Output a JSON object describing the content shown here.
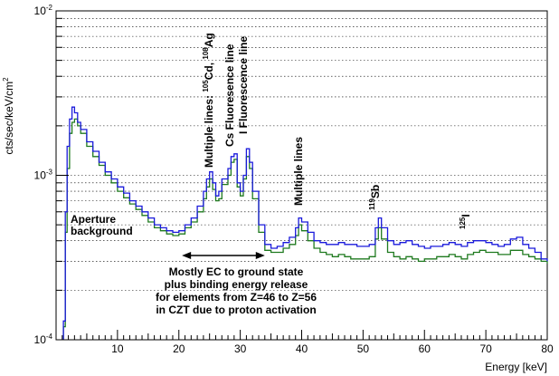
{
  "chart_data": {
    "type": "line",
    "xlabel": "Energy [keV]",
    "ylabel_main": "cts/sec/keV/cm",
    "ylabel_sup": "2",
    "xlim": [
      0,
      80
    ],
    "ylim": [
      0.0001,
      0.01
    ],
    "yscale": "log",
    "xticks": [
      "10",
      "20",
      "30",
      "40",
      "50",
      "60",
      "70",
      "80"
    ],
    "yticks": [
      {
        "base": "10",
        "exp": "-4",
        "value": 0.0001
      },
      {
        "base": "10",
        "exp": "-3",
        "value": 0.001
      },
      {
        "base": "10",
        "exp": "-2",
        "value": 0.01
      }
    ],
    "grid": "horizontal-dotted",
    "colors": {
      "series_blue": "#1a1adb",
      "series_green": "#1f7a1f"
    },
    "series": [
      {
        "color": "#1a1adb",
        "x": [
          1.2,
          1.5,
          1.8,
          2.2,
          2.6,
          3.0,
          3.5,
          4.0,
          5.0,
          6.0,
          7.0,
          8.0,
          9.0,
          10.0,
          11.0,
          12.0,
          13.0,
          14.0,
          15.0,
          16.0,
          17.0,
          18.0,
          19.0,
          20.0,
          21.0,
          22.0,
          23.0,
          24.0,
          24.5,
          25.0,
          25.5,
          26.0,
          26.5,
          27.0,
          28.0,
          28.5,
          29.0,
          29.5,
          30.0,
          30.5,
          31.0,
          31.5,
          32.0,
          33.0,
          34.0,
          35.0,
          36.0,
          37.0,
          38.0,
          39.0,
          39.5,
          40.0,
          41.0,
          42.0,
          43.0,
          44.0,
          45.0,
          46.0,
          47.0,
          48.0,
          49.0,
          50.0,
          51.0,
          52.0,
          52.5,
          53.0,
          54.0,
          55.0,
          56.0,
          57.0,
          58.0,
          59.0,
          60.0,
          61.0,
          62.0,
          63.0,
          64.0,
          65.0,
          66.0,
          67.0,
          68.0,
          69.0,
          70.0,
          71.0,
          72.0,
          73.0,
          74.0,
          75.0,
          76.0,
          77.0,
          78.0,
          79.0,
          80.0
        ],
        "y": [
          0.00013,
          0.0006,
          0.0015,
          0.0022,
          0.0026,
          0.0024,
          0.0021,
          0.0019,
          0.0016,
          0.0014,
          0.0012,
          0.00105,
          0.00095,
          0.00085,
          0.00078,
          0.0007,
          0.00065,
          0.0006,
          0.00055,
          0.0005,
          0.00048,
          0.00046,
          0.00045,
          0.00046,
          0.0005,
          0.00055,
          0.00065,
          0.0008,
          0.00095,
          0.00105,
          0.0009,
          0.00075,
          0.0008,
          0.00095,
          0.0011,
          0.0013,
          0.00135,
          0.0009,
          0.0008,
          0.001,
          0.00145,
          0.0012,
          0.0008,
          0.0005,
          0.00038,
          0.00036,
          0.00037,
          0.00039,
          0.00042,
          0.00048,
          0.00055,
          0.00052,
          0.00045,
          0.0004,
          0.00039,
          0.00038,
          0.00038,
          0.00039,
          0.00038,
          0.00038,
          0.00037,
          0.00037,
          0.00038,
          0.00048,
          0.00055,
          0.00048,
          0.0004,
          0.00038,
          0.00039,
          0.0004,
          0.00038,
          0.00037,
          0.00036,
          0.00037,
          0.00037,
          0.00038,
          0.00039,
          0.00038,
          0.00037,
          0.00039,
          0.0004,
          0.0004,
          0.00039,
          0.00038,
          0.00037,
          0.00038,
          0.00041,
          0.00042,
          0.00038,
          0.00036,
          0.00034,
          0.00031,
          0.0003
        ]
      },
      {
        "color": "#1f7a1f",
        "x": [
          1.2,
          1.5,
          1.8,
          2.2,
          2.6,
          3.0,
          3.5,
          4.0,
          5.0,
          6.0,
          7.0,
          8.0,
          9.0,
          10.0,
          11.0,
          12.0,
          13.0,
          14.0,
          15.0,
          16.0,
          17.0,
          18.0,
          19.0,
          20.0,
          21.0,
          22.0,
          23.0,
          24.0,
          24.5,
          25.0,
          25.5,
          26.0,
          26.5,
          27.0,
          28.0,
          28.5,
          29.0,
          29.5,
          30.0,
          30.5,
          31.0,
          31.5,
          32.0,
          33.0,
          34.0,
          35.0,
          36.0,
          37.0,
          38.0,
          39.0,
          39.5,
          40.0,
          41.0,
          42.0,
          43.0,
          44.0,
          45.0,
          46.0,
          47.0,
          48.0,
          49.0,
          50.0,
          51.0,
          52.0,
          52.5,
          53.0,
          54.0,
          55.0,
          56.0,
          57.0,
          58.0,
          59.0,
          60.0,
          61.0,
          62.0,
          63.0,
          64.0,
          65.0,
          66.0,
          67.0,
          68.0,
          69.0,
          70.0,
          71.0,
          72.0,
          73.0,
          74.0,
          75.0,
          76.0,
          77.0,
          78.0,
          79.0,
          80.0
        ],
        "y": [
          0.00012,
          0.00045,
          0.0011,
          0.0018,
          0.0021,
          0.0022,
          0.002,
          0.0018,
          0.0015,
          0.0013,
          0.00115,
          0.001,
          0.0009,
          0.0008,
          0.00073,
          0.00067,
          0.00062,
          0.00057,
          0.00052,
          0.00048,
          0.00046,
          0.00044,
          0.00043,
          0.00044,
          0.00048,
          0.00052,
          0.0006,
          0.00072,
          0.00085,
          0.00095,
          0.00082,
          0.0007,
          0.00072,
          0.00088,
          0.001,
          0.0012,
          0.00125,
          0.00085,
          0.00075,
          0.00095,
          0.0013,
          0.0011,
          0.00072,
          0.00045,
          0.00035,
          0.00034,
          0.00034,
          0.00036,
          0.00038,
          0.00043,
          0.0005,
          0.00046,
          0.0004,
          0.00036,
          0.00034,
          0.00033,
          0.00032,
          0.00033,
          0.00032,
          0.00031,
          0.00031,
          0.00031,
          0.00032,
          0.00041,
          0.00048,
          0.00041,
          0.00034,
          0.00032,
          0.00031,
          0.00032,
          0.00031,
          0.0003,
          0.00031,
          0.00031,
          0.00032,
          0.00032,
          0.00033,
          0.00032,
          0.00031,
          0.00033,
          0.00034,
          0.00035,
          0.00034,
          0.00034,
          0.00033,
          0.00033,
          0.00035,
          0.00035,
          0.00033,
          0.00032,
          0.00031,
          0.0003,
          0.00029
        ]
      }
    ],
    "annotations": {
      "cd_ag": {
        "text_pre": "Multiple lines: ",
        "sup1": "105",
        "mid": "Cd, ",
        "sup2": "108",
        "post": "Ag"
      },
      "cs": "Cs Fluoresence line",
      "iodine_fl": "I Fluorescence line",
      "multiple_lines": "Multiple lines",
      "sb": {
        "sup": "119",
        "text": "Sb"
      },
      "i125": {
        "sup": "125",
        "text": "I"
      },
      "aperture": "Aperture",
      "background": "background",
      "ec_lines": [
        "Mostly EC to ground state",
        "plus binding energy release",
        "for elements from Z=46 to Z=56",
        "in CZT due to proton activation"
      ],
      "arrow_range": [
        20.5,
        34
      ]
    }
  }
}
